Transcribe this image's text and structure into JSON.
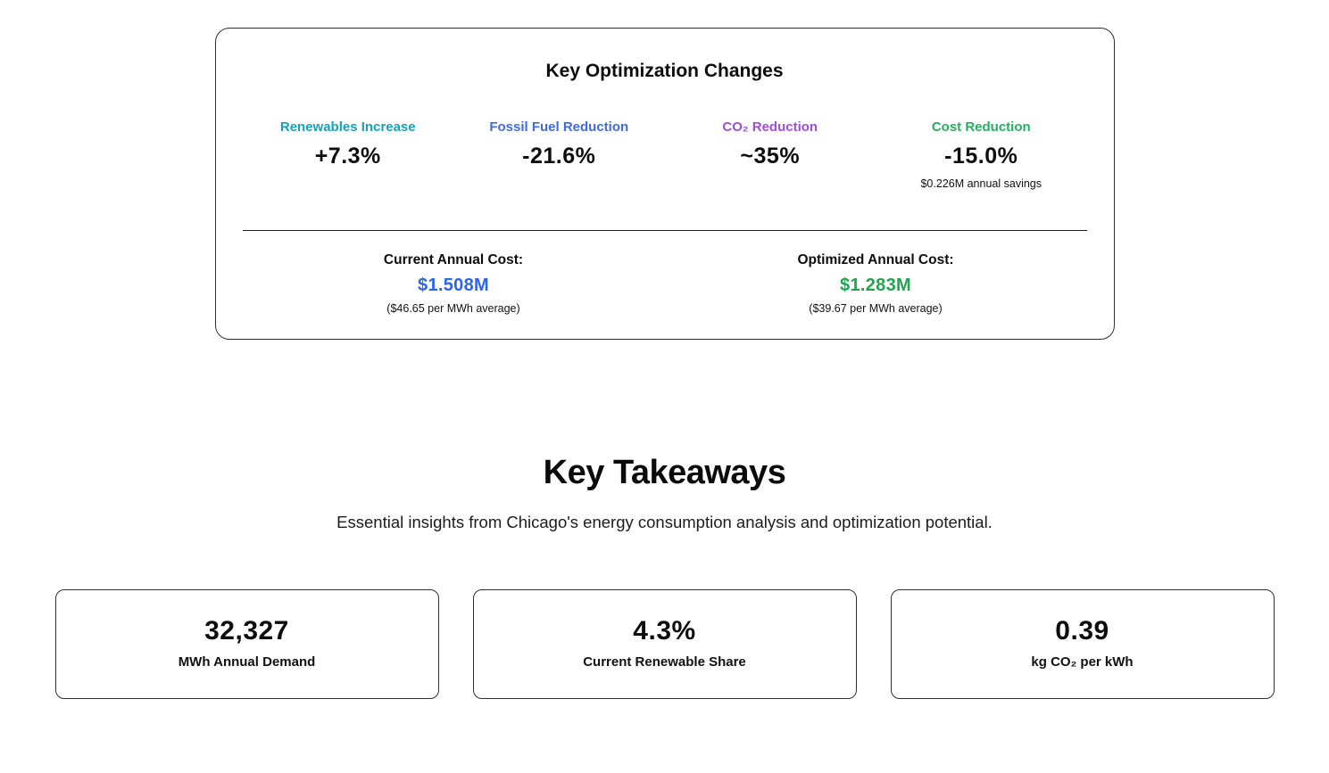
{
  "optimization_card": {
    "title": "Key Optimization Changes",
    "metrics": [
      {
        "label": "Renewables Increase",
        "value": "+7.3%",
        "color": "#17a2b8",
        "note": ""
      },
      {
        "label": "Fossil Fuel Reduction",
        "value": "-21.6%",
        "color": "#4169e1",
        "note": ""
      },
      {
        "label": "CO₂ Reduction",
        "value": "~35%",
        "color": "#9d4edd",
        "note": ""
      },
      {
        "label": "Cost Reduction",
        "value": "-15.0%",
        "color": "#27ae60",
        "note": "$0.226M annual savings"
      }
    ],
    "costs": [
      {
        "label": "Current Annual Cost:",
        "value": "$1.508M",
        "color": "#2e64e6",
        "note": "($46.65 per MWh average)"
      },
      {
        "label": "Optimized Annual Cost:",
        "value": "$1.283M",
        "color": "#22a34f",
        "note": "($39.67 per MWh average)"
      }
    ]
  },
  "takeaways": {
    "title": "Key Takeaways",
    "subtitle": "Essential insights from Chicago's energy consumption analysis and optimization potential."
  },
  "stat_cards": [
    {
      "value": "32,327",
      "label": "MWh Annual Demand"
    },
    {
      "value": "4.3%",
      "label": "Current Renewable Share"
    },
    {
      "value": "0.39",
      "label": "kg CO₂ per kWh"
    }
  ]
}
